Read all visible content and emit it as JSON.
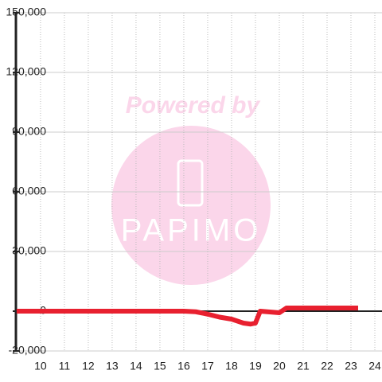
{
  "chart_data": {
    "type": "line",
    "watermark": {
      "line1": "Powered by",
      "line2": "PAPIMO"
    },
    "x": [
      9,
      10,
      11,
      12,
      13,
      14,
      15,
      16,
      16.5,
      17,
      17.5,
      18,
      18.5,
      18.8,
      19,
      19.2,
      20,
      20.3,
      21,
      22,
      23,
      23.3
    ],
    "series": [
      {
        "color": "#e8202f",
        "values": [
          0,
          0,
          0,
          0,
          0,
          0,
          0,
          0,
          -300,
          -1500,
          -3000,
          -4000,
          -6000,
          -6500,
          -6000,
          0,
          -800,
          1600,
          1600,
          1600,
          1600,
          1600
        ]
      }
    ],
    "xlim": [
      8.97,
      24.3
    ],
    "xticks": [
      10,
      11,
      12,
      13,
      14,
      15,
      16,
      17,
      18,
      19,
      20,
      21,
      22,
      23,
      24
    ],
    "ylim": [
      -20000,
      150000
    ],
    "yticks": [
      {
        "value": -20000,
        "label": "-20,000"
      },
      0,
      {
        "value": 30000,
        "label": "30,000"
      },
      {
        "value": 60000,
        "label": "60,000"
      },
      {
        "value": 90000,
        "label": "90,000"
      },
      {
        "value": 120000,
        "label": "120,000"
      },
      {
        "value": 150000,
        "label": "150,000"
      }
    ],
    "grid": true
  }
}
